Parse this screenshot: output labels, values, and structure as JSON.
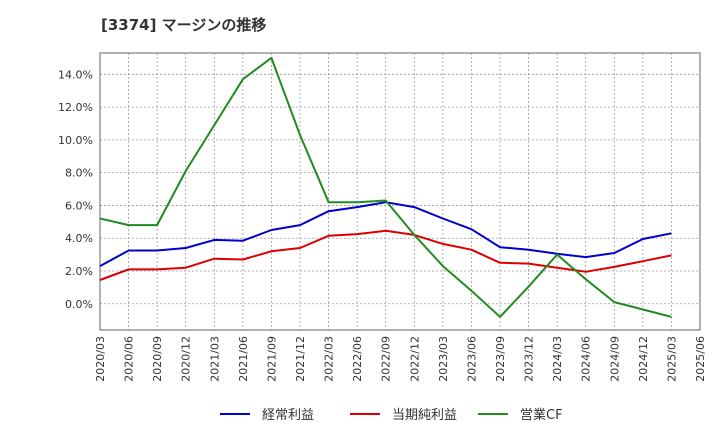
{
  "title": "[3374]  マージンの推移",
  "chart_data": {
    "type": "line",
    "title": "[3374]  マージンの推移",
    "xlabel": "",
    "ylabel": "",
    "categories": [
      "2020/03",
      "2020/06",
      "2020/09",
      "2020/12",
      "2021/03",
      "2021/06",
      "2021/09",
      "2021/12",
      "2022/03",
      "2022/06",
      "2022/09",
      "2022/12",
      "2023/03",
      "2023/06",
      "2023/09",
      "2023/12",
      "2024/03",
      "2024/06",
      "2024/09",
      "2024/12",
      "2025/03",
      "2025/06"
    ],
    "y_ticks": [
      "0.0%",
      "2.0%",
      "4.0%",
      "6.0%",
      "8.0%",
      "10.0%",
      "12.0%",
      "14.0%"
    ],
    "ylim": [
      -1.6,
      15.3
    ],
    "grid": true,
    "legend_position": "bottom",
    "series": [
      {
        "name": "経常利益",
        "color": "#0000cc",
        "values": [
          2.3,
          3.25,
          3.25,
          3.4,
          3.9,
          3.85,
          4.5,
          4.8,
          5.65,
          5.9,
          6.2,
          5.9,
          5.2,
          4.55,
          3.45,
          3.3,
          3.05,
          2.85,
          3.1,
          3.95,
          4.3,
          null
        ]
      },
      {
        "name": "当期純利益",
        "color": "#dd0000",
        "values": [
          1.45,
          2.1,
          2.1,
          2.2,
          2.75,
          2.7,
          3.2,
          3.4,
          4.15,
          4.25,
          4.45,
          4.2,
          3.65,
          3.3,
          2.5,
          2.45,
          2.2,
          1.95,
          2.25,
          2.6,
          2.95,
          null
        ]
      },
      {
        "name": "営業CF",
        "color": "#228B22",
        "values": [
          5.2,
          4.8,
          4.8,
          8.1,
          10.9,
          13.7,
          15.0,
          10.3,
          6.2,
          6.2,
          6.3,
          4.2,
          2.3,
          0.8,
          -0.8,
          1.05,
          3.0,
          1.5,
          0.1,
          -0.35,
          -0.8,
          null
        ]
      }
    ]
  }
}
